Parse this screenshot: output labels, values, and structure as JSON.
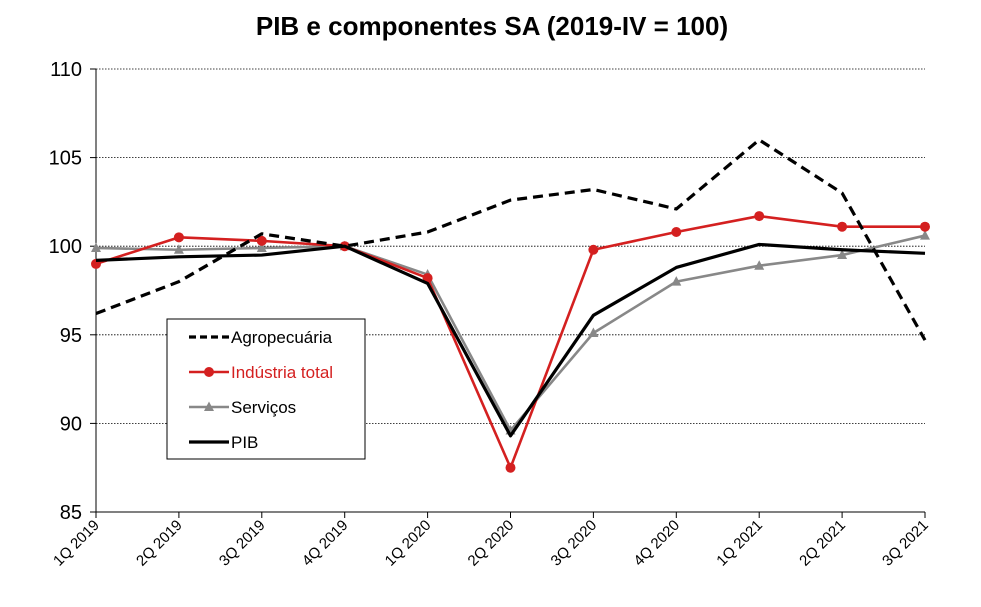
{
  "chart_data": {
    "type": "line",
    "title": "PIB e componentes SA (2019-IV = 100)",
    "xlabel": "",
    "ylabel": "",
    "categories": [
      "1Q 2019",
      "2Q 2019",
      "3Q 2019",
      "4Q 2019",
      "1Q 2020",
      "2Q 2020",
      "3Q 2020",
      "4Q 2020",
      "1Q 2021",
      "2Q 2021",
      "3Q 2021"
    ],
    "ylim": [
      85,
      110
    ],
    "yticks": [
      "85",
      "90",
      "95",
      "100",
      "105",
      "110"
    ],
    "grid": true,
    "legend_position": "left-center",
    "series": [
      {
        "name": "Agropecuária",
        "color": "#000000",
        "style": "dashed",
        "marker": "none",
        "values": [
          96.2,
          98.0,
          100.7,
          100.0,
          100.8,
          102.6,
          103.2,
          102.1,
          106.0,
          103.0,
          94.7
        ]
      },
      {
        "name": "Indústria total",
        "color": "#d42020",
        "style": "solid",
        "marker": "circle",
        "values": [
          99.0,
          100.5,
          100.3,
          100.0,
          98.2,
          87.5,
          99.8,
          100.8,
          101.7,
          101.1,
          101.1
        ]
      },
      {
        "name": "Serviços",
        "color": "#888888",
        "style": "solid",
        "marker": "triangle",
        "values": [
          99.9,
          99.8,
          99.9,
          100.0,
          98.4,
          89.6,
          95.1,
          98.0,
          98.9,
          99.5,
          100.6
        ]
      },
      {
        "name": "PIB",
        "color": "#000000",
        "style": "solid",
        "marker": "none",
        "values": [
          99.2,
          99.4,
          99.5,
          100.0,
          97.9,
          89.3,
          96.1,
          98.8,
          100.1,
          99.8,
          99.6
        ]
      }
    ]
  }
}
